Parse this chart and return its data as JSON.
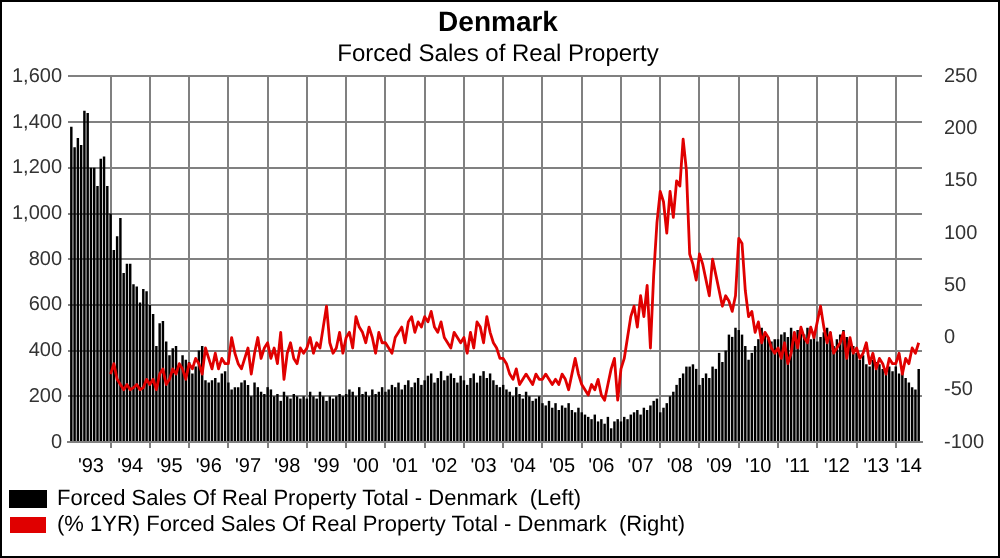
{
  "chart_data": {
    "type": "bar",
    "title": "Denmark",
    "subtitle": "Forced Sales of Real Property",
    "x": [
      "1993-01",
      "1993-02",
      "1993-03",
      "1993-04",
      "1993-05",
      "1993-06",
      "1993-07",
      "1993-08",
      "1993-09",
      "1993-10",
      "1993-11",
      "1993-12",
      "1994-01",
      "1994-02",
      "1994-03",
      "1994-04",
      "1994-05",
      "1994-06",
      "1994-07",
      "1994-08",
      "1994-09",
      "1994-10",
      "1994-11",
      "1994-12",
      "1995-01",
      "1995-02",
      "1995-03",
      "1995-04",
      "1995-05",
      "1995-06",
      "1995-07",
      "1995-08",
      "1995-09",
      "1995-10",
      "1995-11",
      "1995-12",
      "1996-01",
      "1996-02",
      "1996-03",
      "1996-04",
      "1996-05",
      "1996-06",
      "1996-07",
      "1996-08",
      "1996-09",
      "1996-10",
      "1996-11",
      "1996-12",
      "1997-01",
      "1997-02",
      "1997-03",
      "1997-04",
      "1997-05",
      "1997-06",
      "1997-07",
      "1997-08",
      "1997-09",
      "1997-10",
      "1997-11",
      "1997-12",
      "1998-01",
      "1998-02",
      "1998-03",
      "1998-04",
      "1998-05",
      "1998-06",
      "1998-07",
      "1998-08",
      "1998-09",
      "1998-10",
      "1998-11",
      "1998-12",
      "1999-01",
      "1999-02",
      "1999-03",
      "1999-04",
      "1999-05",
      "1999-06",
      "1999-07",
      "1999-08",
      "1999-09",
      "1999-10",
      "1999-11",
      "1999-12",
      "2000-01",
      "2000-02",
      "2000-03",
      "2000-04",
      "2000-05",
      "2000-06",
      "2000-07",
      "2000-08",
      "2000-09",
      "2000-10",
      "2000-11",
      "2000-12",
      "2001-01",
      "2001-02",
      "2001-03",
      "2001-04",
      "2001-05",
      "2001-06",
      "2001-07",
      "2001-08",
      "2001-09",
      "2001-10",
      "2001-11",
      "2001-12",
      "2002-01",
      "2002-02",
      "2002-03",
      "2002-04",
      "2002-05",
      "2002-06",
      "2002-07",
      "2002-08",
      "2002-09",
      "2002-10",
      "2002-11",
      "2002-12",
      "2003-01",
      "2003-02",
      "2003-03",
      "2003-04",
      "2003-05",
      "2003-06",
      "2003-07",
      "2003-08",
      "2003-09",
      "2003-10",
      "2003-11",
      "2003-12",
      "2004-01",
      "2004-02",
      "2004-03",
      "2004-04",
      "2004-05",
      "2004-06",
      "2004-07",
      "2004-08",
      "2004-09",
      "2004-10",
      "2004-11",
      "2004-12",
      "2005-01",
      "2005-02",
      "2005-03",
      "2005-04",
      "2005-05",
      "2005-06",
      "2005-07",
      "2005-08",
      "2005-09",
      "2005-10",
      "2005-11",
      "2005-12",
      "2006-01",
      "2006-02",
      "2006-03",
      "2006-04",
      "2006-05",
      "2006-06",
      "2006-07",
      "2006-08",
      "2006-09",
      "2006-10",
      "2006-11",
      "2006-12",
      "2007-01",
      "2007-02",
      "2007-03",
      "2007-04",
      "2007-05",
      "2007-06",
      "2007-07",
      "2007-08",
      "2007-09",
      "2007-10",
      "2007-11",
      "2007-12",
      "2008-01",
      "2008-02",
      "2008-03",
      "2008-04",
      "2008-05",
      "2008-06",
      "2008-07",
      "2008-08",
      "2008-09",
      "2008-10",
      "2008-11",
      "2008-12",
      "2009-01",
      "2009-02",
      "2009-03",
      "2009-04",
      "2009-05",
      "2009-06",
      "2009-07",
      "2009-08",
      "2009-09",
      "2009-10",
      "2009-11",
      "2009-12",
      "2010-01",
      "2010-02",
      "2010-03",
      "2010-04",
      "2010-05",
      "2010-06",
      "2010-07",
      "2010-08",
      "2010-09",
      "2010-10",
      "2010-11",
      "2010-12",
      "2011-01",
      "2011-02",
      "2011-03",
      "2011-04",
      "2011-05",
      "2011-06",
      "2011-07",
      "2011-08",
      "2011-09",
      "2011-10",
      "2011-11",
      "2011-12",
      "2012-01",
      "2012-02",
      "2012-03",
      "2012-04",
      "2012-05",
      "2012-06",
      "2012-07",
      "2012-08",
      "2012-09",
      "2012-10",
      "2012-11",
      "2012-12",
      "2013-01",
      "2013-02",
      "2013-03",
      "2013-04",
      "2013-05",
      "2013-06",
      "2013-07",
      "2013-08",
      "2013-09",
      "2013-10",
      "2013-11",
      "2013-12",
      "2014-01",
      "2014-02",
      "2014-03",
      "2014-04",
      "2014-05",
      "2014-06",
      "2014-07",
      "2014-08"
    ],
    "series": [
      {
        "name": "Forced Sales Of Real Property Total - Denmark  (Left)",
        "color": "#000000",
        "values": [
          1380,
          1290,
          1330,
          1300,
          1450,
          1440,
          1200,
          1200,
          1120,
          1240,
          1250,
          1120,
          1000,
          840,
          900,
          980,
          740,
          780,
          780,
          690,
          680,
          610,
          670,
          660,
          600,
          560,
          420,
          520,
          530,
          440,
          380,
          410,
          420,
          340,
          380,
          360,
          350,
          300,
          330,
          400,
          420,
          270,
          260,
          270,
          280,
          260,
          300,
          310,
          260,
          230,
          240,
          240,
          260,
          270,
          250,
          200,
          260,
          240,
          220,
          210,
          240,
          230,
          200,
          210,
          180,
          220,
          200,
          190,
          210,
          200,
          190,
          200,
          190,
          220,
          200,
          190,
          220,
          200,
          180,
          200,
          190,
          200,
          210,
          200,
          210,
          230,
          220,
          200,
          240,
          210,
          220,
          200,
          230,
          210,
          220,
          240,
          220,
          230,
          250,
          240,
          260,
          230,
          250,
          270,
          240,
          260,
          280,
          250,
          270,
          290,
          300,
          260,
          280,
          310,
          270,
          290,
          300,
          280,
          260,
          290,
          270,
          250,
          280,
          300,
          260,
          290,
          310,
          280,
          300,
          270,
          250,
          240,
          250,
          230,
          220,
          200,
          240,
          210,
          190,
          220,
          200,
          180,
          190,
          200,
          170,
          160,
          180,
          150,
          170,
          140,
          160,
          150,
          170,
          140,
          130,
          150,
          130,
          120,
          110,
          100,
          120,
          90,
          100,
          80,
          110,
          60,
          90,
          100,
          90,
          110,
          100,
          120,
          130,
          140,
          120,
          150,
          140,
          160,
          180,
          190,
          130,
          150,
          170,
          200,
          220,
          250,
          280,
          300,
          330,
          330,
          340,
          320,
          250,
          280,
          300,
          280,
          330,
          320,
          390,
          350,
          400,
          470,
          460,
          500,
          490,
          470,
          420,
          360,
          390,
          420,
          450,
          500,
          470,
          460,
          440,
          450,
          450,
          470,
          480,
          460,
          500,
          460,
          490,
          480,
          470,
          500,
          450,
          480,
          440,
          460,
          480,
          500,
          480,
          420,
          450,
          470,
          490,
          460,
          440,
          420,
          390,
          360,
          380,
          340,
          330,
          360,
          350,
          340,
          320,
          300,
          330,
          310,
          330,
          300,
          310,
          280,
          260,
          240,
          230,
          320
        ]
      },
      {
        "name": "(% 1YR) Forced Sales Of Real Property Total - Denmark  (Right)",
        "type": "line",
        "axis": "y2",
        "color": "#e00000",
        "x": [
          "1994-01",
          "1994-02",
          "1994-03",
          "1994-04",
          "1994-05",
          "1994-06",
          "1994-07",
          "1994-08",
          "1994-09",
          "1994-10",
          "1994-11",
          "1994-12",
          "1995-01",
          "1995-02",
          "1995-03",
          "1995-04",
          "1995-05",
          "1995-06",
          "1995-07",
          "1995-08",
          "1995-09",
          "1995-10",
          "1995-11",
          "1995-12",
          "1996-01",
          "1996-02",
          "1996-03",
          "1996-04",
          "1996-05",
          "1996-06",
          "1996-07",
          "1996-08",
          "1996-09",
          "1996-10",
          "1996-11",
          "1996-12",
          "1997-01",
          "1997-02",
          "1997-03",
          "1997-04",
          "1997-05",
          "1997-06",
          "1997-07",
          "1997-08",
          "1997-09",
          "1997-10",
          "1997-11",
          "1997-12",
          "1998-01",
          "1998-02",
          "1998-03",
          "1998-04",
          "1998-05",
          "1998-06",
          "1998-07",
          "1998-08",
          "1998-09",
          "1998-10",
          "1998-11",
          "1998-12",
          "1999-01",
          "1999-02",
          "1999-03",
          "1999-04",
          "1999-05",
          "1999-06",
          "1999-07",
          "1999-08",
          "1999-09",
          "1999-10",
          "1999-11",
          "1999-12",
          "2000-01",
          "2000-02",
          "2000-03",
          "2000-04",
          "2000-05",
          "2000-06",
          "2000-07",
          "2000-08",
          "2000-09",
          "2000-10",
          "2000-11",
          "2000-12",
          "2001-01",
          "2001-02",
          "2001-03",
          "2001-04",
          "2001-05",
          "2001-06",
          "2001-07",
          "2001-08",
          "2001-09",
          "2001-10",
          "2001-11",
          "2001-12",
          "2002-01",
          "2002-02",
          "2002-03",
          "2002-04",
          "2002-05",
          "2002-06",
          "2002-07",
          "2002-08",
          "2002-09",
          "2002-10",
          "2002-11",
          "2002-12",
          "2003-01",
          "2003-02",
          "2003-03",
          "2003-04",
          "2003-05",
          "2003-06",
          "2003-07",
          "2003-08",
          "2003-09",
          "2003-10",
          "2003-11",
          "2003-12",
          "2004-01",
          "2004-02",
          "2004-03",
          "2004-04",
          "2004-05",
          "2004-06",
          "2004-07",
          "2004-08",
          "2004-09",
          "2004-10",
          "2004-11",
          "2004-12",
          "2005-01",
          "2005-02",
          "2005-03",
          "2005-04",
          "2005-05",
          "2005-06",
          "2005-07",
          "2005-08",
          "2005-09",
          "2005-10",
          "2005-11",
          "2005-12",
          "2006-01",
          "2006-02",
          "2006-03",
          "2006-04",
          "2006-05",
          "2006-06",
          "2006-07",
          "2006-08",
          "2006-09",
          "2006-10",
          "2006-11",
          "2006-12",
          "2007-01",
          "2007-02",
          "2007-03",
          "2007-04",
          "2007-05",
          "2007-06",
          "2007-07",
          "2007-08",
          "2007-09",
          "2007-10",
          "2007-11",
          "2007-12",
          "2008-01",
          "2008-02",
          "2008-03",
          "2008-04",
          "2008-05",
          "2008-06",
          "2008-07",
          "2008-08",
          "2008-09",
          "2008-10",
          "2008-11",
          "2008-12",
          "2009-01",
          "2009-02",
          "2009-03",
          "2009-04",
          "2009-05",
          "2009-06",
          "2009-07",
          "2009-08",
          "2009-09",
          "2009-10",
          "2009-11",
          "2009-12",
          "2010-01",
          "2010-02",
          "2010-03",
          "2010-04",
          "2010-05",
          "2010-06",
          "2010-07",
          "2010-08",
          "2010-09",
          "2010-10",
          "2010-11",
          "2010-12",
          "2011-01",
          "2011-02",
          "2011-03",
          "2011-04",
          "2011-05",
          "2011-06",
          "2011-07",
          "2011-08",
          "2011-09",
          "2011-10",
          "2011-11",
          "2011-12",
          "2012-01",
          "2012-02",
          "2012-03",
          "2012-04",
          "2012-05",
          "2012-06",
          "2012-07",
          "2012-08",
          "2012-09",
          "2012-10",
          "2012-11",
          "2012-12",
          "2013-01",
          "2013-02",
          "2013-03",
          "2013-04",
          "2013-05",
          "2013-06",
          "2013-07",
          "2013-08",
          "2013-09",
          "2013-10",
          "2013-11",
          "2013-12",
          "2014-01",
          "2014-02",
          "2014-03",
          "2014-04",
          "2014-05",
          "2014-06",
          "2014-07",
          "2014-08"
        ],
        "values": [
          -35,
          -25,
          -40,
          -45,
          -50,
          -45,
          -50,
          -48,
          -45,
          -50,
          -48,
          -40,
          -45,
          -40,
          -50,
          -35,
          -30,
          -45,
          -40,
          -30,
          -35,
          -25,
          -30,
          -40,
          -25,
          -30,
          -20,
          -25,
          -35,
          -10,
          -20,
          -30,
          -15,
          -30,
          -20,
          -25,
          -25,
          0,
          -15,
          -25,
          -30,
          -20,
          -10,
          -35,
          -15,
          0,
          -20,
          -10,
          -5,
          -20,
          -10,
          -25,
          5,
          -40,
          -15,
          -5,
          -20,
          -25,
          -10,
          -15,
          -10,
          0,
          -15,
          -5,
          -10,
          10,
          30,
          -5,
          -15,
          -10,
          5,
          -15,
          0,
          5,
          -10,
          20,
          10,
          5,
          -5,
          10,
          0,
          -15,
          5,
          -5,
          -5,
          -10,
          -15,
          0,
          5,
          10,
          -5,
          15,
          20,
          5,
          15,
          10,
          20,
          15,
          25,
          10,
          5,
          15,
          0,
          -5,
          -10,
          5,
          0,
          -5,
          0,
          -15,
          5,
          -10,
          15,
          10,
          -5,
          20,
          5,
          -5,
          -10,
          -20,
          -20,
          -25,
          -35,
          -40,
          -30,
          -45,
          -40,
          -35,
          -40,
          -45,
          -35,
          -40,
          -40,
          -35,
          -40,
          -45,
          -40,
          -45,
          -35,
          -40,
          -50,
          -35,
          -20,
          -35,
          -45,
          -50,
          -55,
          -45,
          -50,
          -40,
          -55,
          -60,
          -45,
          -30,
          -20,
          -60,
          -30,
          -20,
          0,
          20,
          30,
          10,
          40,
          20,
          50,
          -10,
          60,
          110,
          140,
          130,
          100,
          140,
          115,
          150,
          145,
          190,
          160,
          80,
          70,
          55,
          80,
          70,
          55,
          40,
          75,
          60,
          45,
          30,
          40,
          35,
          25,
          40,
          95,
          90,
          45,
          20,
          25,
          5,
          15,
          -5,
          5,
          0,
          -10,
          -15,
          -10,
          -20,
          -5,
          -25,
          -15,
          5,
          -10,
          10,
          0,
          -5,
          10,
          0,
          15,
          30,
          10,
          -5,
          5,
          -15,
          -10,
          -5,
          5,
          -20,
          0,
          -15,
          -10,
          -20,
          -15,
          -5,
          -25,
          -15,
          -30,
          -20,
          -25,
          -35,
          -20,
          -25,
          -25,
          -15,
          -35,
          -20,
          -25,
          -10,
          -15,
          -5
        ]
      }
    ],
    "xlim": [
      "1992-12",
      "2014-09"
    ],
    "xticks": [
      {
        "value": "1993-07",
        "label": "'93"
      },
      {
        "value": "1994-01",
        "label": null
      },
      {
        "value": "1994-07",
        "label": "'94"
      },
      {
        "value": "1995-01",
        "label": null
      },
      {
        "value": "1995-07",
        "label": "'95"
      },
      {
        "value": "1996-01",
        "label": null
      },
      {
        "value": "1996-07",
        "label": "'96"
      },
      {
        "value": "1997-01",
        "label": null
      },
      {
        "value": "1997-07",
        "label": "'97"
      },
      {
        "value": "1998-01",
        "label": null
      },
      {
        "value": "1998-07",
        "label": "'98"
      },
      {
        "value": "1999-01",
        "label": null
      },
      {
        "value": "1999-07",
        "label": "'99"
      },
      {
        "value": "2000-01",
        "label": null
      },
      {
        "value": "2000-07",
        "label": "'00"
      },
      {
        "value": "2001-01",
        "label": null
      },
      {
        "value": "2001-07",
        "label": "'01"
      },
      {
        "value": "2002-01",
        "label": null
      },
      {
        "value": "2002-07",
        "label": "'02"
      },
      {
        "value": "2003-01",
        "label": null
      },
      {
        "value": "2003-07",
        "label": "'03"
      },
      {
        "value": "2004-01",
        "label": null
      },
      {
        "value": "2004-07",
        "label": "'04"
      },
      {
        "value": "2005-01",
        "label": null
      },
      {
        "value": "2005-07",
        "label": "'05"
      },
      {
        "value": "2006-01",
        "label": null
      },
      {
        "value": "2006-07",
        "label": "'06"
      },
      {
        "value": "2007-01",
        "label": null
      },
      {
        "value": "2007-07",
        "label": "'07"
      },
      {
        "value": "2008-01",
        "label": null
      },
      {
        "value": "2008-07",
        "label": "'08"
      },
      {
        "value": "2009-01",
        "label": null
      },
      {
        "value": "2009-07",
        "label": "'09"
      },
      {
        "value": "2010-01",
        "label": null
      },
      {
        "value": "2010-07",
        "label": "'10"
      },
      {
        "value": "2011-01",
        "label": null
      },
      {
        "value": "2011-07",
        "label": "'11"
      },
      {
        "value": "2012-01",
        "label": null
      },
      {
        "value": "2012-07",
        "label": "'12"
      },
      {
        "value": "2013-01",
        "label": null
      },
      {
        "value": "2013-07",
        "label": "'13"
      },
      {
        "value": "2014-01",
        "label": null
      },
      {
        "value": "2014-05",
        "label": "'14"
      }
    ],
    "ylim": [
      0,
      1600
    ],
    "yticks": [
      {
        "value": 0,
        "label": "0"
      },
      {
        "value": 200,
        "label": "200"
      },
      {
        "value": 400,
        "label": "400"
      },
      {
        "value": 600,
        "label": "600"
      },
      {
        "value": 800,
        "label": "800"
      },
      {
        "value": 1000,
        "label": "1,000"
      },
      {
        "value": 1200,
        "label": "1,200"
      },
      {
        "value": 1400,
        "label": "1,400"
      },
      {
        "value": 1600,
        "label": "1,600"
      }
    ],
    "y2lim": [
      -100,
      250
    ],
    "y2ticks": [
      -100,
      -50,
      0,
      50,
      100,
      150,
      200,
      250
    ],
    "grid": true,
    "legend": "bottom",
    "marker": "none",
    "line_style": "solid"
  }
}
